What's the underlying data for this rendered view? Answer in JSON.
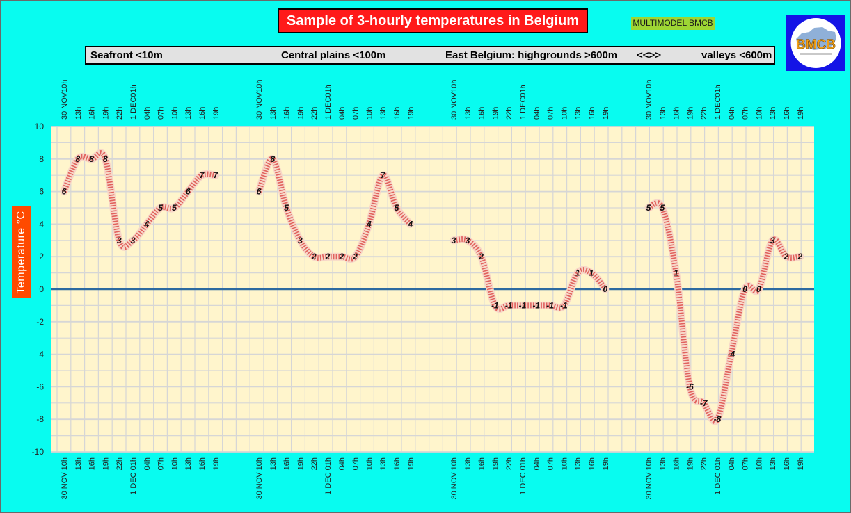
{
  "header": {
    "title": "Sample of 3-hourly temperatures in Belgium",
    "model_tag": "MULTIMODEL BMCB",
    "logo_text": "BMCB"
  },
  "regions": [
    "Seafront <10m",
    "Central plains <100m",
    "East Belgium: highgrounds >600m",
    "<<>>",
    "valleys <600m"
  ],
  "colors": {
    "background": "#08fcf0",
    "plot_background": "#fff5cc",
    "grid": "#d6d6d6",
    "zero_line": "#2d6aa0",
    "curve_outer": "#f7d7c8",
    "curve_dash": "#e1625d",
    "title_box": "#ff1a1a",
    "ylabel_box": "#ff4a00",
    "logo_box": "#1414e6"
  },
  "chart_data": {
    "type": "line",
    "ylabel": "Temperature    °C",
    "ylim": [
      -10,
      10
    ],
    "yticks": [
      10,
      8,
      6,
      4,
      2,
      0,
      -2,
      -4,
      -6,
      -8,
      -10
    ],
    "grid": true,
    "time_labels_top": [
      "30 NOV10h",
      "13h",
      "16h",
      "19h",
      "22h",
      "1 DEC01h",
      "04h",
      "07h",
      "10h",
      "13h",
      "16h",
      "19h"
    ],
    "time_labels_bottom": [
      "30 NOV 10h",
      "13h",
      "16h",
      "19h",
      "22h",
      "1 DEC 01h",
      "04h",
      "07h",
      "10h",
      "13h",
      "16h",
      "19h"
    ],
    "series": [
      {
        "name": "Seafront <10m",
        "values": [
          6,
          8,
          8,
          8,
          3,
          3,
          4,
          5,
          5,
          6,
          7,
          7
        ]
      },
      {
        "name": "Central plains <100m",
        "values": [
          6,
          8,
          5,
          3,
          2,
          2,
          2,
          2,
          4,
          7,
          5,
          4
        ]
      },
      {
        "name": "East Belgium: highgrounds >600m",
        "values": [
          3,
          3,
          2,
          -1,
          -1,
          -1,
          -1,
          -1,
          -1,
          1,
          1,
          0
        ]
      },
      {
        "name": "valleys <600m",
        "values": [
          5,
          5,
          1,
          -6,
          -7,
          -8,
          -4,
          0,
          0,
          3,
          2,
          2
        ]
      }
    ]
  }
}
